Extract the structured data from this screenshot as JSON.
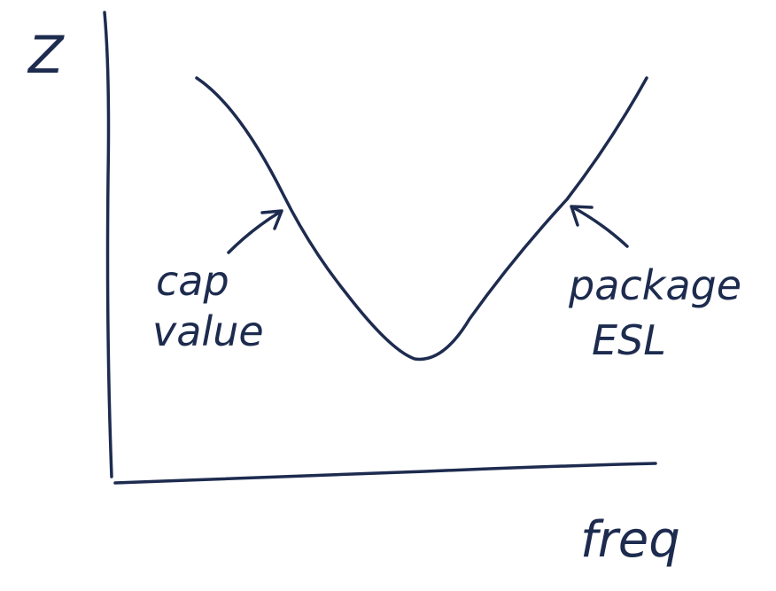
{
  "axes": {
    "y_label": "Z",
    "x_label": "freq"
  },
  "annotations": [
    {
      "lines": [
        "cap",
        "value"
      ]
    },
    {
      "lines": [
        "package",
        "ESL"
      ]
    }
  ]
}
